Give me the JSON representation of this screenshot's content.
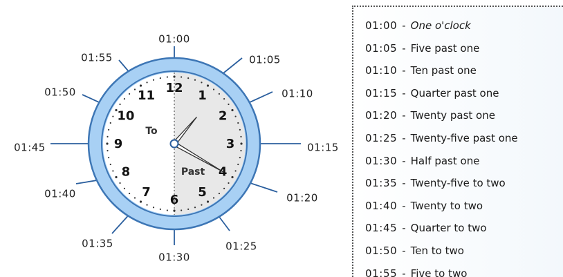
{
  "clock": {
    "hour_numbers": [
      "12",
      "1",
      "2",
      "3",
      "4",
      "5",
      "6",
      "7",
      "8",
      "9",
      "10",
      "11"
    ],
    "outer_times": [
      "01:00",
      "01:05",
      "01:10",
      "01:15",
      "01:20",
      "01:25",
      "01:30",
      "01:35",
      "01:40",
      "01:45",
      "01:50",
      "01:55"
    ],
    "half_labels": {
      "left": "To",
      "right": "Past"
    },
    "hands": {
      "hour": 1,
      "minute": 20
    },
    "colors": {
      "ring": "#a8d0f4",
      "ring_stroke": "#3d76b5",
      "face_left": "#ffffff",
      "face_right": "#e8e8e8",
      "pointer_lines": "#2b5f9e"
    }
  },
  "legend": {
    "items": [
      {
        "time": "01:00",
        "words": "One o'clock"
      },
      {
        "time": "01:05",
        "words": "Five past one"
      },
      {
        "time": "01:10",
        "words": "Ten past one"
      },
      {
        "time": "01:15",
        "words": "Quarter past one"
      },
      {
        "time": "01:20",
        "words": "Twenty past one"
      },
      {
        "time": "01:25",
        "words": "Twenty-five past one"
      },
      {
        "time": "01:30",
        "words": "Half past one"
      },
      {
        "time": "01:35",
        "words": "Twenty-five to two"
      },
      {
        "time": "01:40",
        "words": "Twenty to two"
      },
      {
        "time": "01:45",
        "words": "Quarter to two"
      },
      {
        "time": "01:50",
        "words": "Ten to two"
      },
      {
        "time": "01:55",
        "words": "Five to two"
      }
    ]
  }
}
